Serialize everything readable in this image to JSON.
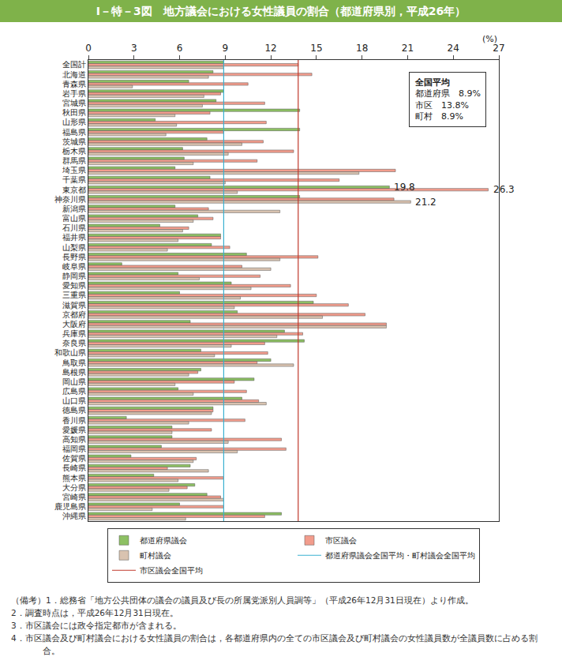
{
  "chart_data": {
    "type": "bar",
    "orientation": "horizontal",
    "title": "Ⅰ－特－3図　地方議会における女性議員の割合（都道府県別，平成26年）",
    "unit_label": "(%)",
    "categories": [
      "全国計",
      "北海道",
      "青森県",
      "岩手県",
      "宮城県",
      "秋田県",
      "山形県",
      "福島県",
      "茨城県",
      "栃木県",
      "群馬県",
      "埼玉県",
      "千葉県",
      "東京都",
      "神奈川県",
      "新潟県",
      "富山県",
      "石川県",
      "福井県",
      "山梨県",
      "長野県",
      "岐阜県",
      "静岡県",
      "愛知県",
      "三重県",
      "滋賀県",
      "京都府",
      "大阪府",
      "兵庫県",
      "奈良県",
      "和歌山県",
      "鳥取県",
      "島根県",
      "岡山県",
      "広島県",
      "山口県",
      "徳島県",
      "香川県",
      "愛媛県",
      "高知県",
      "福岡県",
      "佐賀県",
      "長崎県",
      "熊本県",
      "大分県",
      "宮崎県",
      "鹿児島県",
      "沖縄県"
    ],
    "series": [
      {
        "name": "都道府県議会",
        "color": "#8dc063",
        "values": [
          8.9,
          8.2,
          6.6,
          8.9,
          8.4,
          13.9,
          4.4,
          13.9,
          7.8,
          6.2,
          6.3,
          5.7,
          8.0,
          19.8,
          13.9,
          5.7,
          7.2,
          4.7,
          8.7,
          8.1,
          10.4,
          2.2,
          5.9,
          9.4,
          6.0,
          14.8,
          9.8,
          6.7,
          12.9,
          14.2,
          7.4,
          12.0,
          7.4,
          10.9,
          5.9,
          10.1,
          8.2,
          2.5,
          5.5,
          5.5,
          4.8,
          2.8,
          6.7,
          4.3,
          7.0,
          7.8,
          6.0,
          12.7
        ]
      },
      {
        "name": "市区議会",
        "color": "#f29c8c",
        "values": [
          13.8,
          14.7,
          10.5,
          8.7,
          11.6,
          8.0,
          11.7,
          8.9,
          11.5,
          13.5,
          11.1,
          20.2,
          16.5,
          26.3,
          20.1,
          7.9,
          8.2,
          6.6,
          8.7,
          9.3,
          15.1,
          10.1,
          11.3,
          13.3,
          15.0,
          17.1,
          18.2,
          19.6,
          14.1,
          11.6,
          11.8,
          11.1,
          7.2,
          9.6,
          10.4,
          11.2,
          8.2,
          10.3,
          8.1,
          12.7,
          13.0,
          7.1,
          5.2,
          8.9,
          6.5,
          8.7,
          8.9,
          11.6
        ]
      },
      {
        "name": "町村議会",
        "color": "#d9c3b0",
        "values": [
          8.9,
          7.9,
          2.9,
          7.6,
          7.5,
          5.7,
          5.8,
          5.1,
          10.1,
          9.2,
          6.9,
          17.8,
          9.0,
          9.8,
          21.2,
          12.6,
          6.9,
          6.2,
          5.9,
          5.2,
          12.6,
          12.0,
          7.3,
          10.7,
          10.0,
          9.6,
          15.4,
          19.6,
          12.4,
          9.4,
          8.3,
          13.5,
          6.6,
          5.7,
          6.9,
          11.7,
          8.1,
          6.6,
          5.5,
          9.2,
          9.8,
          6.9,
          7.9,
          5.9,
          5.3,
          8.9,
          4.2,
          6.4
        ]
      }
    ],
    "reference_lines": [
      {
        "name": "都道府県議会全国平均・町村議会全国平均",
        "value": 8.9,
        "color": "#3ab0d0"
      },
      {
        "name": "市区議会全国平均",
        "value": 13.8,
        "color": "#c0392b"
      }
    ],
    "annotations": [
      {
        "text": "19.8",
        "category": "東京都",
        "series": "都道府県議会",
        "value": 19.8
      },
      {
        "text": "26.3",
        "category": "東京都",
        "series": "市区議会",
        "value": 26.3
      },
      {
        "text": "21.2",
        "category": "神奈川県",
        "series": "町村議会",
        "value": 21.2
      }
    ],
    "inset": {
      "title": "全国平均",
      "rows": [
        {
          "label": "都道府県",
          "text": "8.9%"
        },
        {
          "label": "市区",
          "text": "13.8%"
        },
        {
          "label": "町村",
          "text": "8.9%"
        }
      ]
    },
    "xlim": [
      0,
      27
    ],
    "xticks": [
      0,
      3,
      6,
      9,
      12,
      15,
      18,
      21,
      24,
      27
    ],
    "grid": false,
    "legend": "bottom",
    "notes": [
      "（備考）1．総務省「地方公共団体の議会の議員及び長の所属党派別人員調等」（平成26年12月31日現在）より作成。",
      "2．調査時点は，平成26年12月31日現在。",
      "3．市区議会には政令指定都市が含まれる。",
      "4．市区議会及び町村議会における女性議員の割合は，各都道府県内の全ての市区議会及び町村議会の女性議員数が全議員数に占める割合。"
    ]
  }
}
